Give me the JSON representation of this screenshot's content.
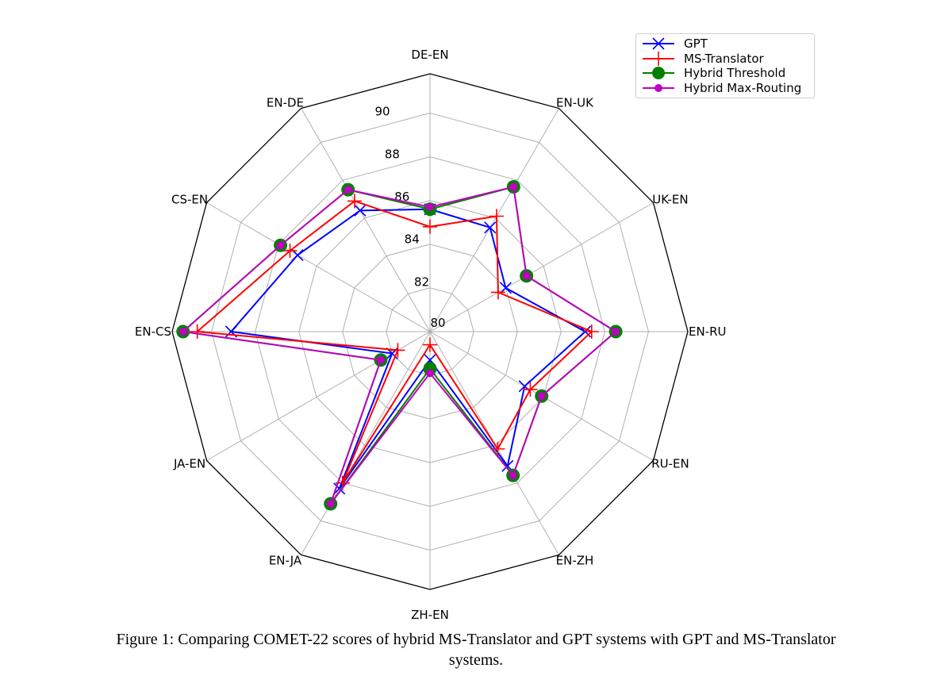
{
  "caption": {
    "line1": "Figure 1: Comparing COMET-22 scores of hybrid MS-Translator and GPT systems with GPT and MS-Translator",
    "line2": "systems."
  },
  "legend": {
    "items": [
      {
        "label": "GPT",
        "color": "#0000ff",
        "marker": "x"
      },
      {
        "label": "MS-Translator",
        "color": "#ff0000",
        "marker": "+"
      },
      {
        "label": "Hybrid Threshold",
        "color": "#008000",
        "marker": "o-large"
      },
      {
        "label": "Hybrid Max-Routing",
        "color": "#bf00bf",
        "marker": "o-small"
      }
    ]
  },
  "chart_data": {
    "type": "radar",
    "title": "",
    "categories": [
      "DE-EN",
      "EN-UK",
      "UK-EN",
      "EN-RU",
      "RU-EN",
      "EN-ZH",
      "ZH-EN",
      "EN-JA",
      "JA-EN",
      "EN-CS",
      "CS-EN",
      "EN-DE"
    ],
    "radial_ticks": [
      80,
      82,
      84,
      86,
      88,
      90
    ],
    "rlim": [
      80,
      91.8
    ],
    "grid": true,
    "legend_position": "upper right",
    "series": [
      {
        "name": "GPT",
        "color": "#0000ff",
        "marker": "x",
        "values": [
          85.6,
          85.5,
          84.0,
          87.1,
          85.0,
          87.1,
          81.3,
          88.3,
          82.0,
          89.1,
          87.0,
          86.4
        ]
      },
      {
        "name": "MS-Translator",
        "color": "#ff0000",
        "marker": "+",
        "values": [
          84.8,
          86.1,
          83.6,
          87.4,
          85.3,
          86.2,
          80.6,
          88.0,
          81.7,
          90.65,
          87.4,
          86.9
        ]
      },
      {
        "name": "Hybrid Threshold",
        "color": "#008000",
        "marker": "o",
        "values": [
          85.6,
          87.65,
          85.1,
          88.5,
          85.9,
          87.6,
          81.7,
          89.1,
          82.6,
          91.3,
          87.9,
          87.5
        ]
      },
      {
        "name": "Hybrid Max-Routing",
        "color": "#bf00bf",
        "marker": "o",
        "values": [
          85.7,
          87.65,
          85.1,
          88.5,
          85.9,
          87.6,
          81.9,
          89.1,
          82.6,
          91.3,
          87.9,
          87.5
        ]
      }
    ]
  }
}
